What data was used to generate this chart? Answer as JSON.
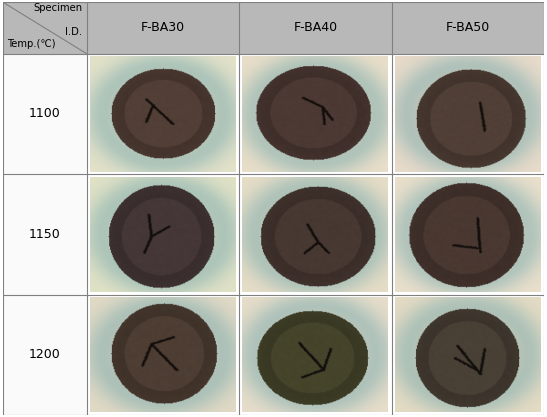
{
  "col_headers": [
    "F-BA30",
    "F-BA40",
    "F-BA50"
  ],
  "row_headers": [
    "1100",
    "1150",
    "1200"
  ],
  "header_bg": "#b8b8b8",
  "border_color": "#808080",
  "header_corner_text1": "Specimen",
  "header_corner_text2": "I.D.",
  "header_corner_text3": "Temp.(℃)",
  "fig_bg": "#ffffff",
  "figsize": [
    5.47,
    4.17
  ],
  "dpi": 100,
  "lcw": 0.155,
  "hrh": 0.125,
  "lm": 0.005,
  "bm": 0.005
}
